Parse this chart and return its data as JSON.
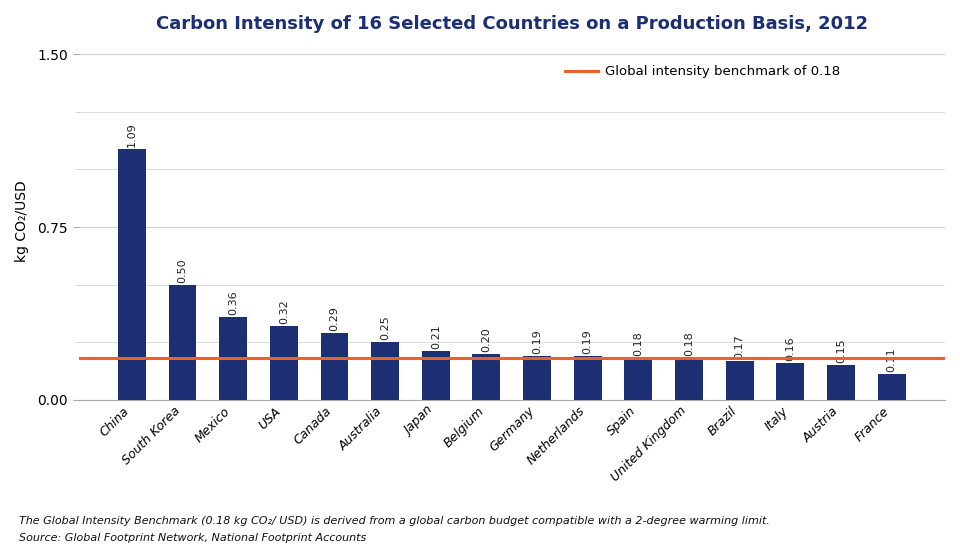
{
  "title": "Carbon Intensity of 16 Selected Countries on a Production Basis, 2012",
  "categories": [
    "China",
    "South Korea",
    "Mexico",
    "USA",
    "Canada",
    "Australia",
    "Japan",
    "Belgium",
    "Germany",
    "Netherlands",
    "Spain",
    "United Kingdom",
    "Brazil",
    "Italy",
    "Austria",
    "France"
  ],
  "values": [
    1.09,
    0.5,
    0.36,
    0.32,
    0.29,
    0.25,
    0.21,
    0.2,
    0.19,
    0.19,
    0.18,
    0.18,
    0.17,
    0.16,
    0.15,
    0.11
  ],
  "bar_color": "#1b2f72",
  "benchmark_value": 0.18,
  "benchmark_color": "#e8622a",
  "benchmark_label": "Global intensity benchmark of 0.18",
  "ylabel": "kg CO₂/USD",
  "major_yticks": [
    0.0,
    0.75,
    1.5
  ],
  "major_ytick_labels": [
    "0.00",
    "0.75",
    "1.50"
  ],
  "minor_yticks": [
    0.25,
    0.5,
    1.0,
    1.25
  ],
  "ylim": [
    0,
    1.55
  ],
  "footnote1": "The Global Intensity Benchmark (0.18 kg CO₂/ USD) is derived from a global carbon budget compatible with a 2-degree warming limit.",
  "footnote2": "Source: Global Footprint Network, National Footprint Accounts",
  "title_color": "#1b2f72",
  "title_fontsize": 13,
  "grid_color": "#d0d0d0",
  "label_fontsize": 8,
  "value_label_color": "#222222"
}
